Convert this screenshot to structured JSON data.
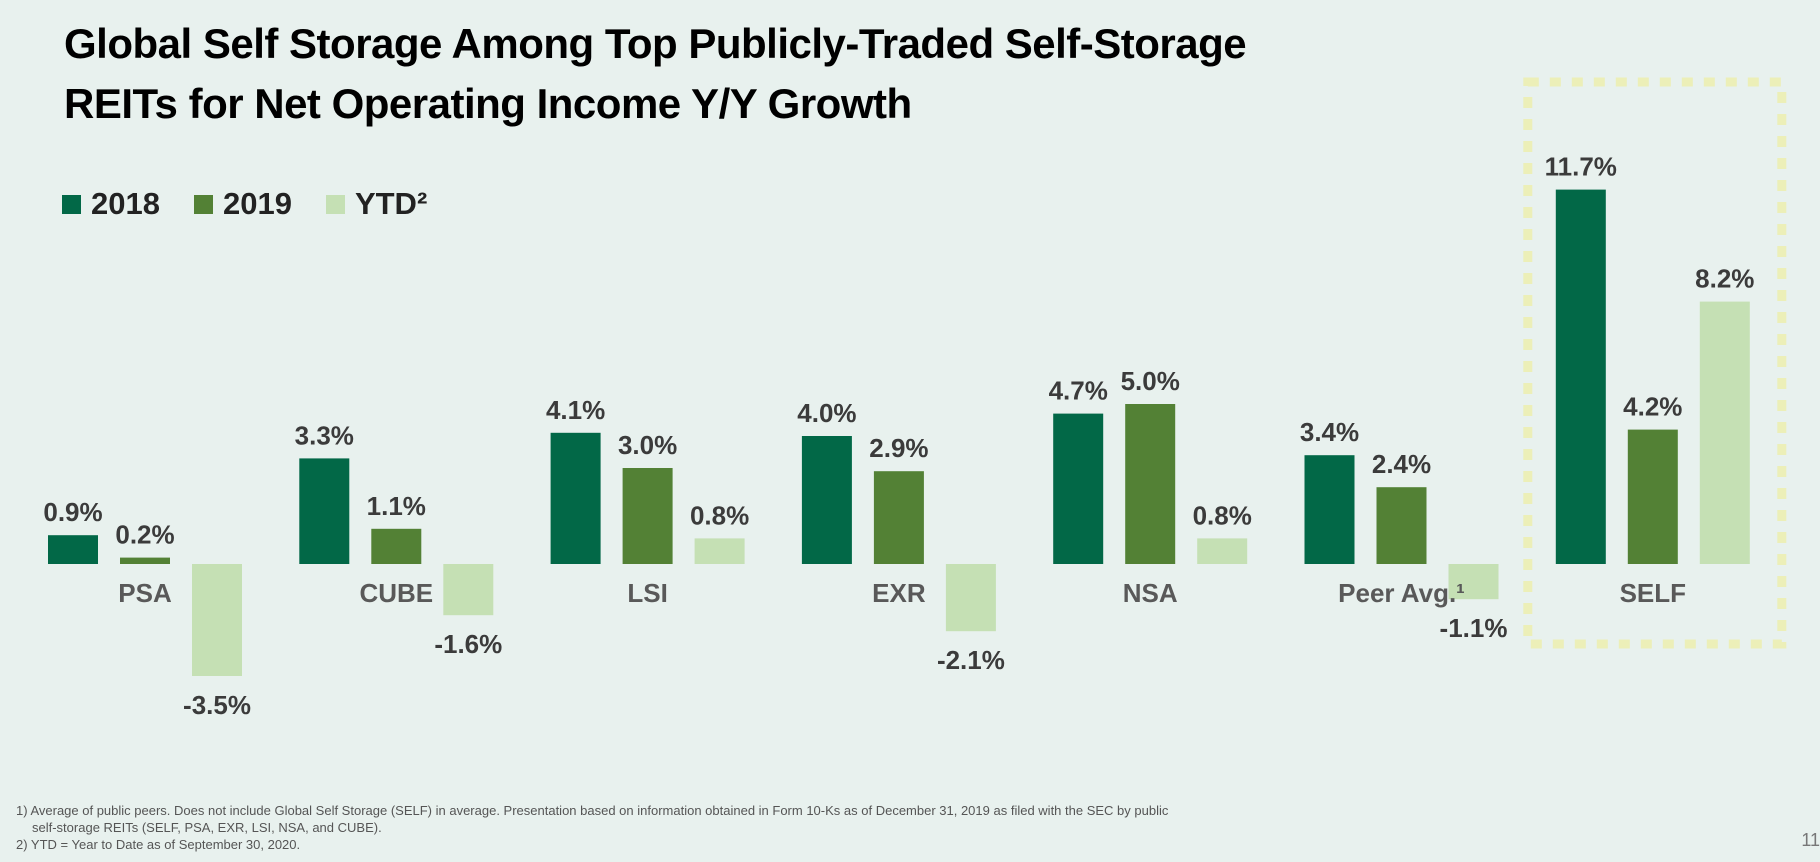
{
  "title_line1": "Global Self Storage Among Top Publicly-Traded Self-Storage",
  "title_line2": "REITs for Net Operating Income Y/Y Growth",
  "colors": {
    "y2018": "#026847",
    "y2019": "#538135",
    "ytd": "#c5e0b4",
    "highlight_border": "#ecefb8",
    "value_text": "#3b3b3b",
    "category_text": "#595959"
  },
  "legend": [
    {
      "label": "2018",
      "color_key": "y2018"
    },
    {
      "label": "2019",
      "color_key": "y2019"
    },
    {
      "label": "YTD²",
      "color_key": "ytd"
    }
  ],
  "chart_data": {
    "type": "bar",
    "categories": [
      "PSA",
      "CUBE",
      "LSI",
      "EXR",
      "NSA",
      "Peer Avg.¹",
      "SELF"
    ],
    "series": [
      {
        "name": "2018",
        "values": [
          0.9,
          3.3,
          4.1,
          4.0,
          4.7,
          3.4,
          11.7
        ]
      },
      {
        "name": "2019",
        "values": [
          0.2,
          1.1,
          3.0,
          2.9,
          5.0,
          2.4,
          4.2
        ]
      },
      {
        "name": "YTD²",
        "values": [
          -3.5,
          -1.6,
          0.8,
          -2.1,
          0.8,
          -1.1,
          8.2
        ]
      }
    ],
    "value_labels": [
      [
        "0.9%",
        "3.3%",
        "4.1%",
        "4.0%",
        "4.7%",
        "3.4%",
        "11.7%"
      ],
      [
        "0.2%",
        "1.1%",
        "3.0%",
        "2.9%",
        "5.0%",
        "2.4%",
        "4.2%"
      ],
      [
        "-3.5%",
        "-1.6%",
        "0.8%",
        "-2.1%",
        "0.8%",
        "-1.1%",
        "8.2%"
      ]
    ],
    "highlighted_category": "SELF",
    "ylim": [
      -3.5,
      11.7
    ],
    "legend_position": "top-left",
    "grid": false
  },
  "footnotes": {
    "line1": "1) Average of public peers. Does not include Global Self Storage (SELF) in average. Presentation based on information obtained in Form 10-Ks as of December 31, 2019 as filed with the SEC by public",
    "line2": "self-storage REITs (SELF, PSA, EXR, LSI, NSA, and CUBE).",
    "line3": "2) YTD = Year to Date as of September 30, 2020."
  },
  "page_number": "11"
}
